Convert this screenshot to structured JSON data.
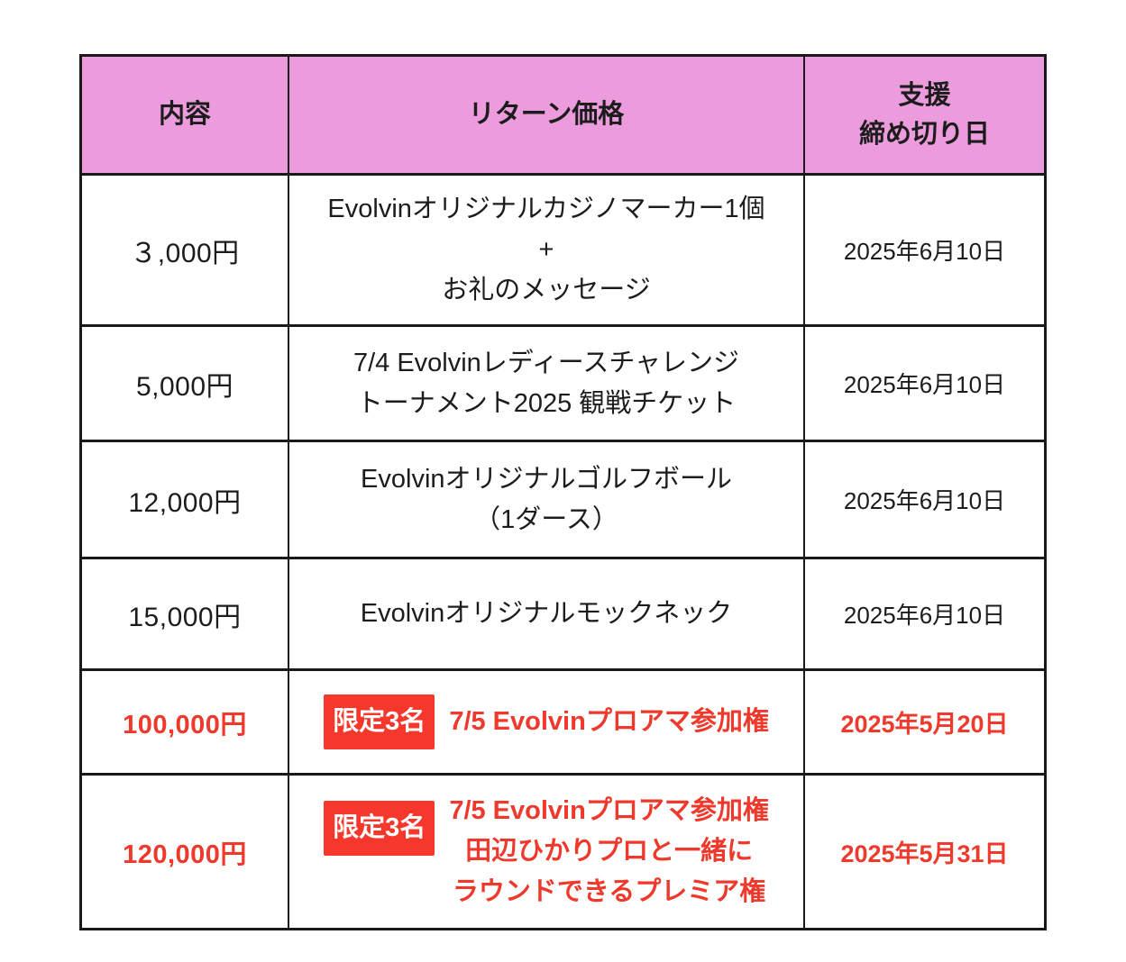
{
  "colors": {
    "header_bg": "#ec9cdc",
    "border": "#191919",
    "accent_red": "#ee392c",
    "badge_bg": "#f5382b",
    "badge_text": "#ffffff"
  },
  "table": {
    "header": {
      "col_content": "内容",
      "col_return_price": "リターン価格",
      "col_deadline_line1": "支援",
      "col_deadline_line2": "締め切り日"
    },
    "rows": [
      {
        "price": "３,000円",
        "content": [
          "Evolvinオリジナルカジノマーカー1個",
          "+",
          "お礼のメッセージ"
        ],
        "deadline": "2025年6月10日"
      },
      {
        "price": "5,000円",
        "content": [
          "7/4 Evolvinレディースチャレンジ",
          "トーナメント2025 観戦チケット"
        ],
        "deadline": "2025年6月10日"
      },
      {
        "price": "12,000円",
        "content": [
          "Evolvinオリジナルゴルフボール",
          "（1ダース）"
        ],
        "deadline": "2025年6月10日"
      },
      {
        "price": "15,000円",
        "content": [
          "Evolvinオリジナルモックネック"
        ],
        "deadline": "2025年6月10日"
      },
      {
        "price": "100,000円",
        "badge": "限定3名",
        "content": [
          "7/5 Evolvinプロアマ参加権"
        ],
        "deadline": "2025年5月20日"
      },
      {
        "price": "120,000円",
        "badge": "限定3名",
        "content": [
          "7/5 Evolvinプロアマ参加権",
          "田辺ひかりプロと一緒に",
          "ラウンドできるプレミア権"
        ],
        "deadline": "2025年5月31日"
      }
    ]
  }
}
